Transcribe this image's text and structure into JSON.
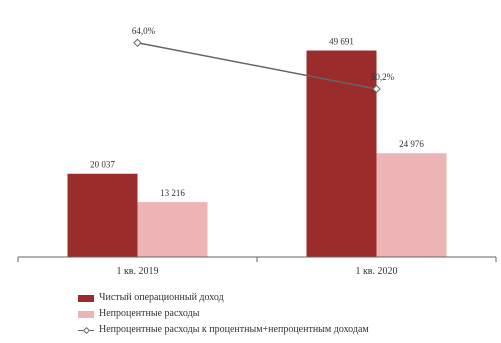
{
  "chart_data": {
    "type": "bar",
    "categories": [
      "1 кв. 2019",
      "1 кв. 2020"
    ],
    "series": [
      {
        "name": "Чистый операционный доход",
        "kind": "bar",
        "color": "#9b2c2c",
        "values": [
          20.037,
          49.691
        ],
        "value_labels": [
          "20 037",
          "49 691"
        ]
      },
      {
        "name": "Непроцентные расходы",
        "kind": "bar",
        "color": "#ecb4b4",
        "values": [
          13.216,
          24.976
        ],
        "value_labels": [
          "13 216",
          "24 976"
        ]
      },
      {
        "name": "Непроцентные расходы к процентным+непроцентным доходам",
        "kind": "line",
        "color": "#666666",
        "values": [
          64.0,
          50.2
        ],
        "value_labels": [
          "64,0%",
          "50,2%"
        ]
      }
    ],
    "bar_ylim": [
      0,
      58
    ],
    "line_ylim": [
      0,
      72
    ],
    "grid": false,
    "legend_position": "bottom-left"
  }
}
